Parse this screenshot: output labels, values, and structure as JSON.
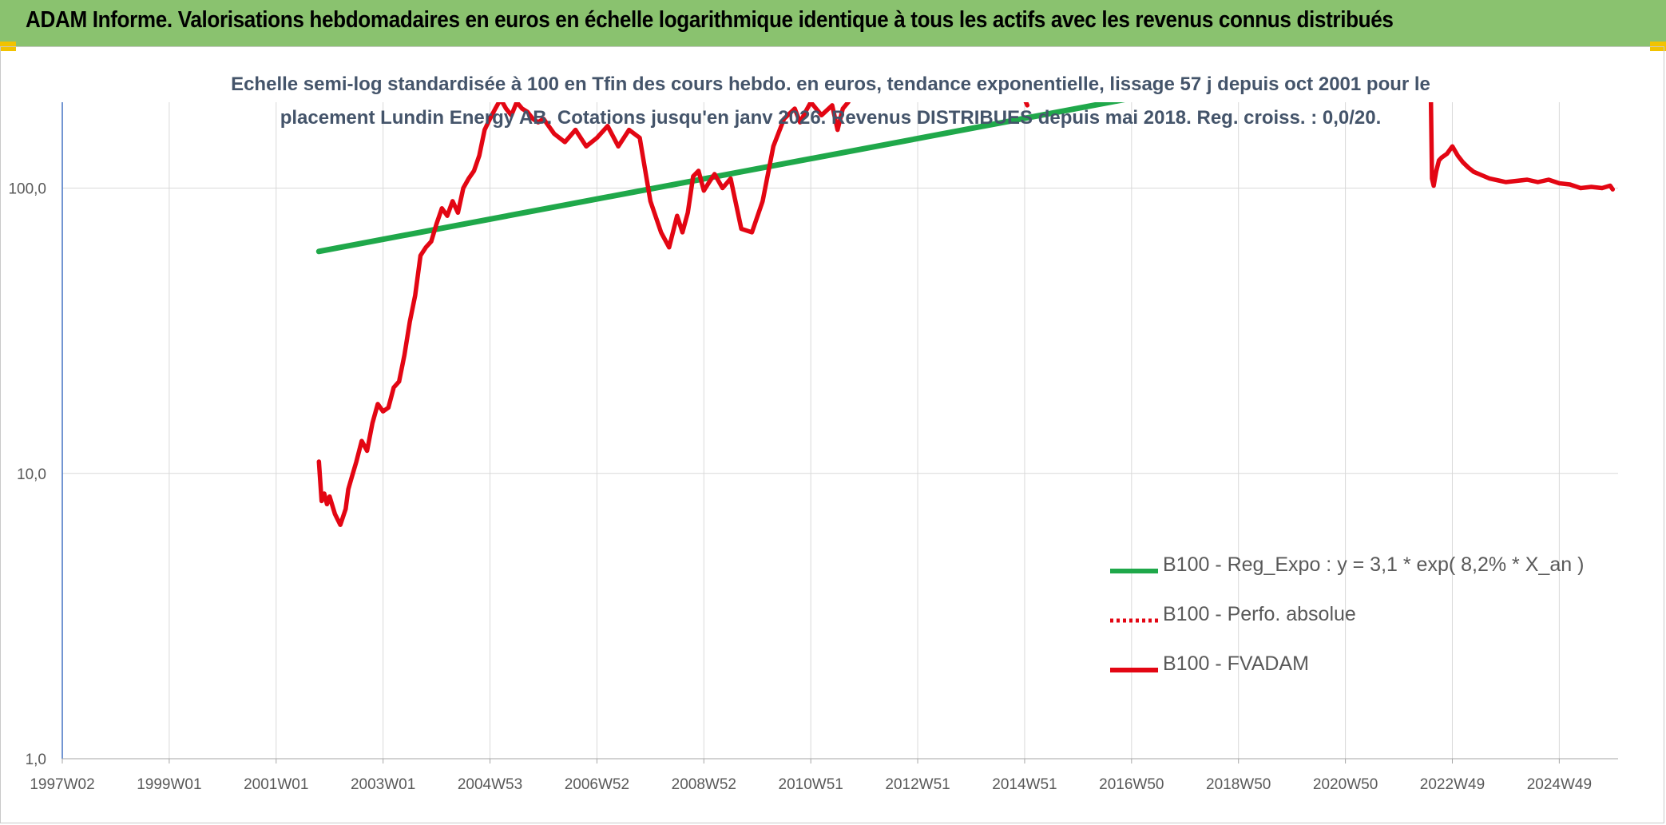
{
  "header": {
    "title": "ADAM Informe. Valorisations hebdomadaires en euros en échelle logarithmique identique à tous les actifs avec les revenus connus distribués"
  },
  "chart_data": {
    "type": "line",
    "title_line1": "Echelle semi-log standardisée à 100 en Tfin des cours hebdo. en euros, tendance exponentielle, lissage 57 j depuis oct 2001 pour le",
    "title_line2": "placement Lundin Energy AB. Cotations jusqu'en janv 2026. Revenus DISTRIBUES depuis mai 2018. Reg. croiss. : 0,0/20.",
    "y_scale": "log",
    "ylim": [
      1,
      200
    ],
    "y_ticks": [
      {
        "value": 1,
        "label": "1,0"
      },
      {
        "value": 10,
        "label": "10,0"
      },
      {
        "value": 100,
        "label": "100,0"
      }
    ],
    "xlim": [
      1997.0,
      2026.1
    ],
    "x_ticks": [
      {
        "value": 1997.0,
        "label": "1997W02"
      },
      {
        "value": 1999.0,
        "label": "1999W01"
      },
      {
        "value": 2001.0,
        "label": "2001W01"
      },
      {
        "value": 2003.0,
        "label": "2003W01"
      },
      {
        "value": 2005.0,
        "label": "2004W53"
      },
      {
        "value": 2007.0,
        "label": "2006W52"
      },
      {
        "value": 2009.0,
        "label": "2008W52"
      },
      {
        "value": 2011.0,
        "label": "2010W51"
      },
      {
        "value": 2013.0,
        "label": "2012W51"
      },
      {
        "value": 2015.0,
        "label": "2014W51"
      },
      {
        "value": 2017.0,
        "label": "2016W50"
      },
      {
        "value": 2019.0,
        "label": "2018W50"
      },
      {
        "value": 2021.0,
        "label": "2020W50"
      },
      {
        "value": 2023.0,
        "label": "2022W49"
      },
      {
        "value": 2025.0,
        "label": "2024W49"
      }
    ],
    "grid": true,
    "legend_position": "bottom-right",
    "series": [
      {
        "name": "B100 - Reg_Expo : y = 3,1 * exp( 8,2% *  X_an )",
        "color": "#1fa84a",
        "style": "solid",
        "x": [
          2001.8,
          2016.9
        ],
        "y": [
          60,
          205
        ]
      },
      {
        "name": "B100 - Perfo. absolue",
        "color": "#e30613",
        "style": "dotted",
        "x": [],
        "y": []
      },
      {
        "name": "B100 - FVADAM",
        "color": "#e30613",
        "style": "solid",
        "segments": [
          {
            "x": [
              2001.8,
              2001.85,
              2001.9,
              2001.95,
              2002.0,
              2002.1,
              2002.2,
              2002.3,
              2002.35,
              2002.4,
              2002.5,
              2002.6,
              2002.7,
              2002.8,
              2002.9,
              2003.0,
              2003.1,
              2003.2,
              2003.3,
              2003.4,
              2003.5,
              2003.6,
              2003.7,
              2003.8,
              2003.9,
              2004.0,
              2004.1,
              2004.2,
              2004.3,
              2004.4,
              2004.5,
              2004.6,
              2004.7,
              2004.8,
              2004.9,
              2005.0,
              2005.1,
              2005.2,
              2005.3,
              2005.4,
              2005.5,
              2005.6,
              2005.7,
              2005.8,
              2005.9,
              2006.0,
              2006.2,
              2006.4,
              2006.6,
              2006.8,
              2007.0,
              2007.2,
              2007.4,
              2007.6,
              2007.8,
              2008.0,
              2008.2,
              2008.35,
              2008.5,
              2008.6,
              2008.7,
              2008.8,
              2008.9,
              2009.0,
              2009.1,
              2009.2,
              2009.35,
              2009.5,
              2009.7,
              2009.9,
              2010.1,
              2010.3,
              2010.5,
              2010.7,
              2010.8,
              2010.9,
              2011.0,
              2011.2,
              2011.4,
              2011.5,
              2011.6,
              2011.7,
              2011.75
            ],
            "y": [
              11,
              8,
              8.5,
              7.8,
              8.3,
              7.2,
              6.6,
              7.5,
              8.8,
              9.5,
              11,
              13,
              12,
              15,
              17.5,
              16.5,
              17,
              20,
              21,
              26,
              34,
              42,
              58,
              62,
              65,
              75,
              85,
              80,
              90,
              82,
              100,
              108,
              115,
              130,
              160,
              175,
              190,
              205,
              190,
              180,
              200,
              190,
              185,
              175,
              170,
              175,
              155,
              145,
              160,
              140,
              150,
              165,
              140,
              160,
              150,
              90,
              70,
              62,
              80,
              70,
              82,
              110,
              115,
              98,
              105,
              112,
              100,
              108,
              72,
              70,
              90,
              140,
              175,
              190,
              170,
              185,
              200,
              180,
              195,
              160,
              190,
              200,
              210
            ]
          },
          {
            "x": [
              2015.0,
              2015.05
            ],
            "y": [
              205,
              195
            ]
          },
          {
            "x": [
              2022.6,
              2022.62,
              2022.65,
              2022.7,
              2022.75,
              2022.8,
              2022.9,
              2023.0,
              2023.1,
              2023.2,
              2023.3,
              2023.4,
              2023.5,
              2023.7,
              2023.9,
              2024.0,
              2024.2,
              2024.4,
              2024.6,
              2024.8,
              2025.0,
              2025.2,
              2025.4,
              2025.6,
              2025.8,
              2025.95,
              2026.0
            ],
            "y": [
              200,
              108,
              102,
              115,
              125,
              128,
              132,
              140,
              130,
              123,
              118,
              114,
              112,
              108,
              106,
              105,
              106,
              107,
              105,
              107,
              104,
              103,
              100,
              101,
              100,
              102,
              99
            ]
          }
        ]
      }
    ]
  }
}
